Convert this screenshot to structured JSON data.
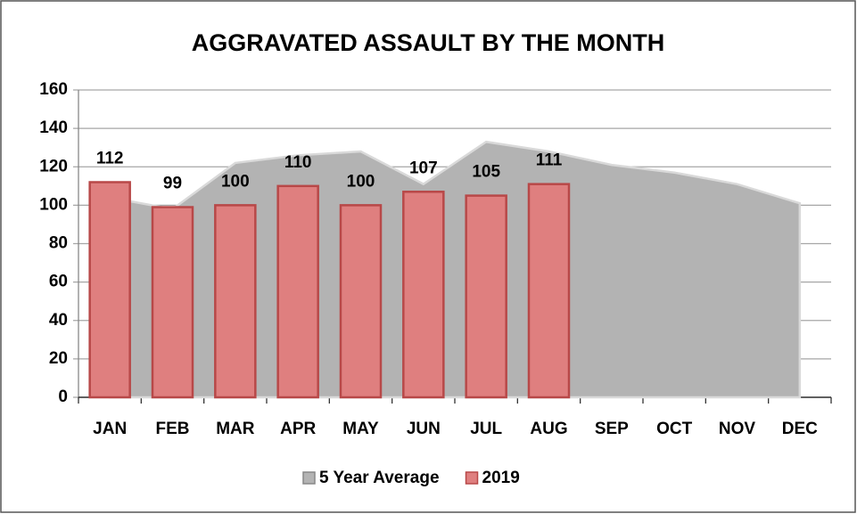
{
  "chart_data": {
    "type": "combo",
    "title": "AGGRAVATED ASSAULT BY THE MONTH",
    "categories": [
      "JAN",
      "FEB",
      "MAR",
      "APR",
      "MAY",
      "JUN",
      "JUL",
      "AUG",
      "SEP",
      "OCT",
      "NOV",
      "DEC"
    ],
    "series": [
      {
        "name": "5 Year Average",
        "type": "area",
        "color": "#b3b3b3",
        "values": [
          104,
          98,
          122,
          126,
          128,
          111,
          133,
          128,
          121,
          117,
          111,
          101
        ]
      },
      {
        "name": "2019",
        "type": "bar",
        "color": "#df7f7f",
        "values": [
          112,
          99,
          100,
          110,
          100,
          107,
          105,
          111,
          null,
          null,
          null,
          null
        ],
        "data_labels": true
      }
    ],
    "ylim": [
      0,
      160
    ],
    "yticks": [
      0,
      20,
      40,
      60,
      80,
      100,
      120,
      140,
      160
    ],
    "grid": true,
    "legend": "bottom"
  }
}
